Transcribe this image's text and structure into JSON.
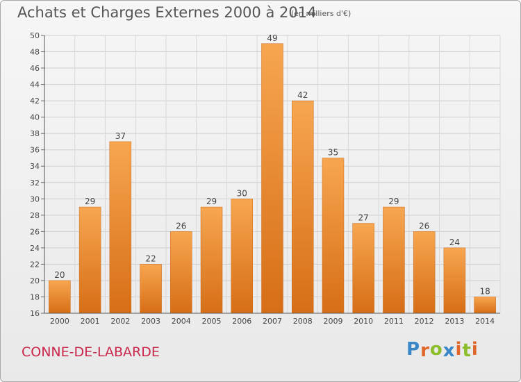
{
  "header": {
    "title": "Achats et Charges Externes 2000 à 2014",
    "subtitle": "(en milliers d'€)"
  },
  "footer": {
    "commune": "CONNE-DE-LABARDE",
    "logo": {
      "text": "Proxiti",
      "letters": [
        {
          "ch": "P",
          "color": "#3a87c8"
        },
        {
          "ch": "r",
          "color": "#e0672a"
        },
        {
          "ch": "o",
          "color": "#8cbd2a"
        },
        {
          "ch": "x",
          "color": "#3a87c8"
        },
        {
          "ch": "i",
          "color": "#e0672a"
        },
        {
          "ch": "t",
          "color": "#8cbd2a"
        },
        {
          "ch": "i",
          "color": "#e0672a"
        }
      ]
    }
  },
  "chart_data": {
    "type": "bar",
    "title": "Achats et Charges Externes 2000 à 2014",
    "subtitle": "(en milliers d'€)",
    "xlabel": "",
    "ylabel": "",
    "categories": [
      "2000",
      "2001",
      "2002",
      "2003",
      "2004",
      "2005",
      "2006",
      "2007",
      "2008",
      "2009",
      "2010",
      "2011",
      "2012",
      "2013",
      "2014"
    ],
    "values": [
      20,
      29,
      37,
      22,
      26,
      29,
      30,
      49,
      42,
      35,
      27,
      29,
      26,
      24,
      18
    ],
    "data_labels": [
      "20",
      "29",
      "37",
      "22",
      "26",
      "29",
      "30",
      "49",
      "42",
      "35",
      "27",
      "29",
      "26",
      "24",
      "18"
    ],
    "ylim": [
      16,
      50
    ],
    "yticks": [
      16,
      18,
      20,
      22,
      24,
      26,
      28,
      30,
      32,
      34,
      36,
      38,
      40,
      42,
      44,
      46,
      48,
      50
    ],
    "grid": true,
    "bar_color": "#e8882e",
    "legend": "none"
  }
}
